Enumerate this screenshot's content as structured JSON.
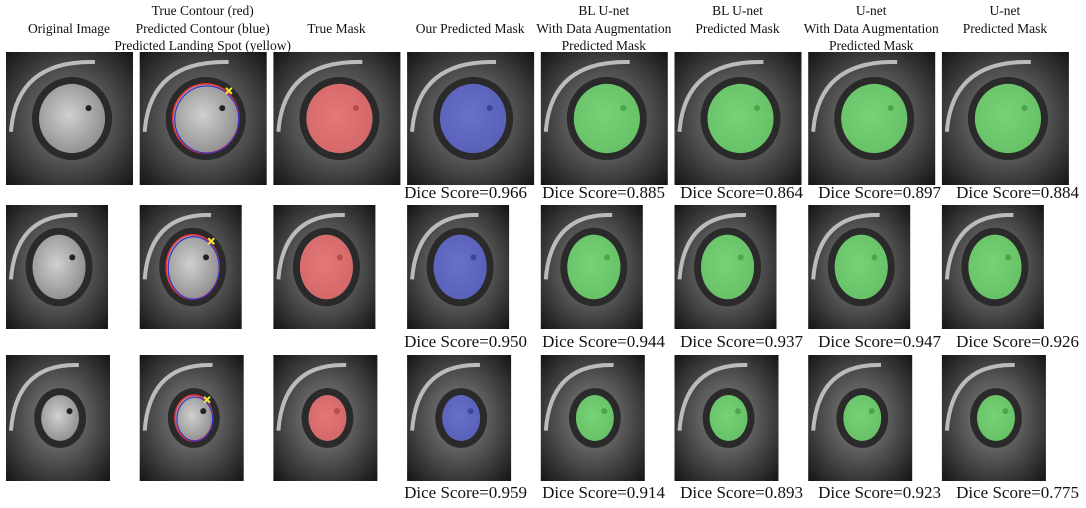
{
  "header": {
    "columns": [
      {
        "lines": [
          "Original Image"
        ]
      },
      {
        "lines": [
          "True Contour (red)",
          "Predicted Contour (blue)",
          "Predicted Landing Spot (yellow)"
        ]
      },
      {
        "lines": [
          "True Mask"
        ]
      },
      {
        "lines": [
          "Our Predicted Mask"
        ]
      },
      {
        "lines": [
          "BL U-net",
          "With Data Augmentation",
          "Predicted Mask"
        ]
      },
      {
        "lines": [
          "BL U-net",
          "Predicted Mask"
        ]
      },
      {
        "lines": [
          "U-net",
          "With Data Augmentation",
          "Predicted Mask"
        ]
      },
      {
        "lines": [
          "U-net",
          "Predicted Mask"
        ]
      }
    ]
  },
  "rows": [
    {
      "dice_scores": [
        "Dice Score=0.966",
        "Dice Score=0.885",
        "Dice Score=0.864",
        "Dice Score=0.897",
        "Dice Score=0.884"
      ]
    },
    {
      "dice_scores": [
        "Dice Score=0.950",
        "Dice Score=0.944",
        "Dice Score=0.937",
        "Dice Score=0.947",
        "Dice Score=0.926"
      ]
    },
    {
      "dice_scores": [
        "Dice Score=0.959",
        "Dice Score=0.914",
        "Dice Score=0.893",
        "Dice Score=0.923",
        "Dice Score=0.775"
      ]
    }
  ]
}
